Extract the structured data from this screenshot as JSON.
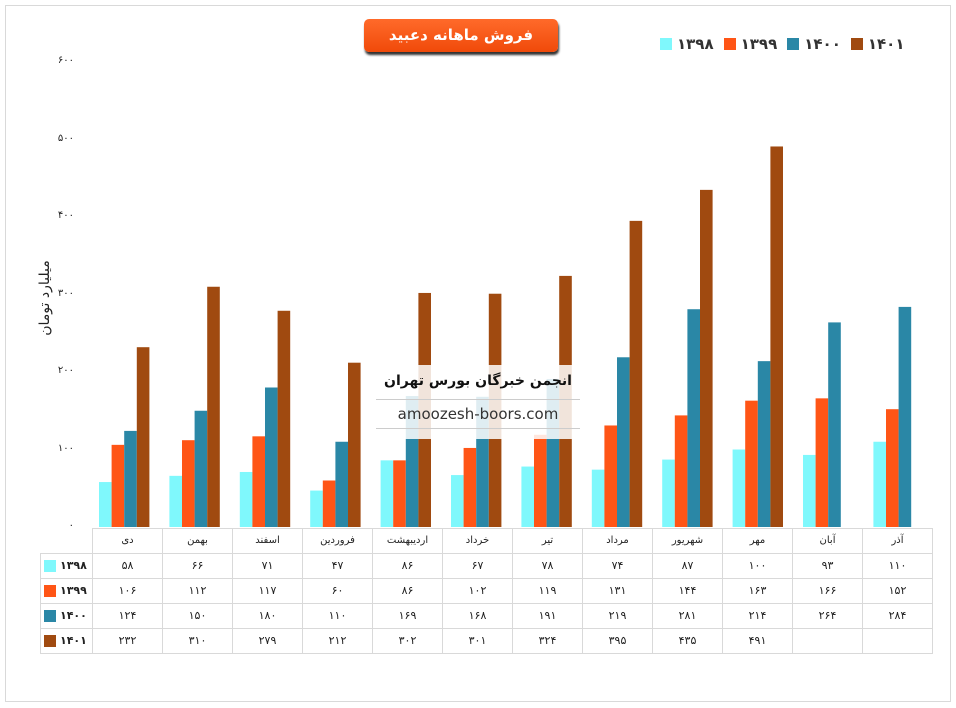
{
  "chart_data": {
    "type": "bar",
    "title": "فروش ماهانه دعبید",
    "ylabel": "میلیارد تومان",
    "xlabel": "",
    "ylim": [
      0,
      600
    ],
    "yticks": [
      0,
      100,
      200,
      300,
      400,
      500,
      600
    ],
    "ytick_labels": [
      "۰",
      "۱۰۰",
      "۲۰۰",
      "۳۰۰",
      "۴۰۰",
      "۵۰۰",
      "۶۰۰"
    ],
    "legend_position": "top-right",
    "categories": [
      "دی",
      "بهمن",
      "اسفند",
      "فروردین",
      "اردیبهشت",
      "خرداد",
      "تیر",
      "مرداد",
      "شهریور",
      "مهر",
      "آبان",
      "آذر"
    ],
    "series": [
      {
        "name": "۱۳۹۸",
        "color": "#7ff8fc",
        "values": [
          58,
          66,
          71,
          47,
          86,
          67,
          78,
          74,
          87,
          100,
          93,
          110
        ]
      },
      {
        "name": "۱۳۹۹",
        "color": "#ff5516",
        "values": [
          106,
          112,
          117,
          60,
          86,
          102,
          119,
          131,
          144,
          163,
          166,
          152
        ]
      },
      {
        "name": "۱۴۰۰",
        "color": "#2a87a6",
        "values": [
          124,
          150,
          180,
          110,
          169,
          168,
          191,
          219,
          281,
          214,
          264,
          284
        ]
      },
      {
        "name": "۱۴۰۱",
        "color": "#a04a10",
        "values": [
          232,
          310,
          279,
          212,
          302,
          301,
          324,
          395,
          435,
          491,
          null,
          null
        ]
      }
    ]
  },
  "watermark": {
    "name": "انجمن خبرگان بورس تهران",
    "site": "amoozesh-boors.com"
  }
}
